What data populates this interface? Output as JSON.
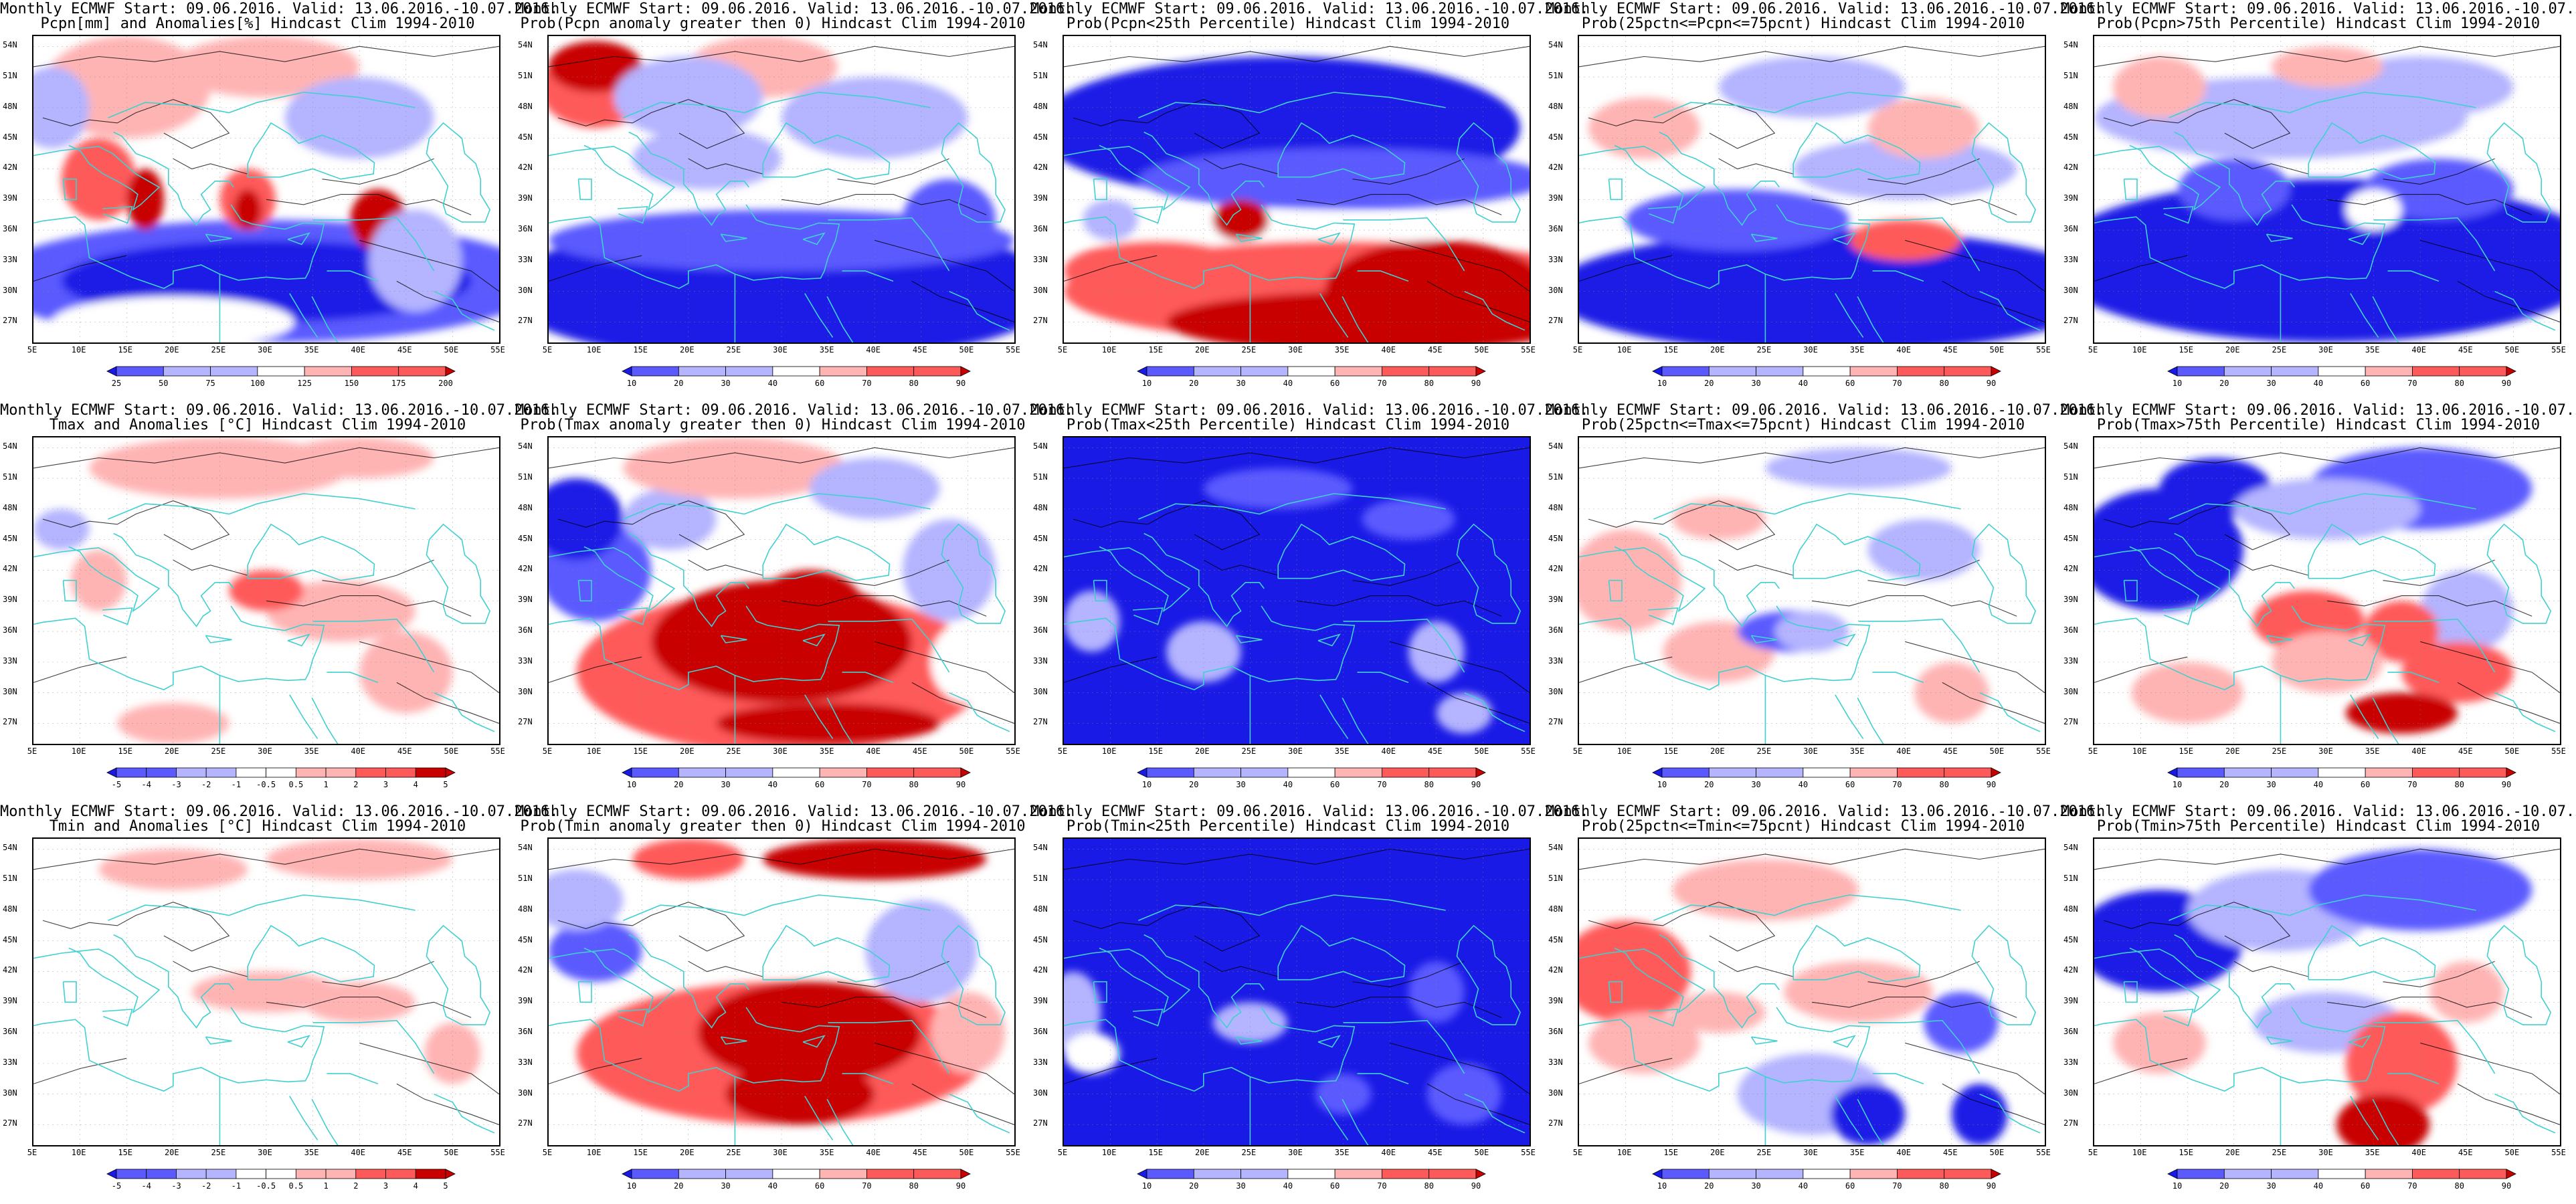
{
  "title_line1": "Monthly ECMWF Start: 09.06.2016. Valid: 13.06.2016.-10.07.2016.",
  "lat_labels": [
    "54N",
    "51N",
    "48N",
    "45N",
    "42N",
    "39N",
    "36N",
    "33N",
    "30N",
    "27N"
  ],
  "lon_labels": [
    "5E",
    "10E",
    "15E",
    "20E",
    "25E",
    "30E",
    "35E",
    "40E",
    "45E",
    "50E",
    "55E"
  ],
  "colors": {
    "blue_dark": "#1a1ae6",
    "blue_mid": "#5a5aff",
    "blue_light": "#b4b4ff",
    "white": "#ffffff",
    "red_light": "#ffb4b4",
    "red_mid": "#ff5a5a",
    "red_dark": "#c80000",
    "coast": "#40d0d0",
    "contour": "#000000"
  },
  "scales": {
    "pcpn_anom": [
      "25",
      "50",
      "75",
      "100",
      "125",
      "150",
      "175",
      "200"
    ],
    "prob": [
      "10",
      "20",
      "30",
      "40",
      "60",
      "70",
      "80",
      "90"
    ],
    "temp_anom": [
      "-5",
      "-4",
      "-3",
      "-2",
      "-1",
      "-0.5",
      "0.5",
      "1",
      "2",
      "3",
      "4",
      "5"
    ]
  },
  "panels": [
    {
      "id": "pcpn-anom",
      "row": 0,
      "col": 0,
      "line2": "Pcpn[mm] and Anomalies[%] Hindcast Clim 1994-2010",
      "scale": "pcpn_anom",
      "field": "pcpn_anom"
    },
    {
      "id": "pcpn-prob-gt0",
      "row": 0,
      "col": 1,
      "line2": "Prob(Pcpn anomaly greater then 0) Hindcast Clim 1994-2010",
      "scale": "prob",
      "field": "pcpn_prob_gt0"
    },
    {
      "id": "pcpn-prob-lt25",
      "row": 0,
      "col": 2,
      "line2": "Prob(Pcpn<25th Percentile) Hindcast Clim 1994-2010",
      "scale": "prob",
      "field": "pcpn_lt25"
    },
    {
      "id": "pcpn-prob-mid",
      "row": 0,
      "col": 3,
      "line2": "Prob(25pctn<=Pcpn<=75pcnt) Hindcast Clim 1994-2010",
      "scale": "prob",
      "field": "pcpn_mid"
    },
    {
      "id": "pcpn-prob-gt75",
      "row": 0,
      "col": 4,
      "line2": "Prob(Pcpn>75th Percentile) Hindcast Clim 1994-2010",
      "scale": "prob",
      "field": "pcpn_gt75"
    },
    {
      "id": "tmax-anom",
      "row": 1,
      "col": 0,
      "line2": "Tmax and Anomalies [°C] Hindcast Clim 1994-2010",
      "scale": "temp_anom",
      "field": "tmax_anom"
    },
    {
      "id": "tmax-prob-gt0",
      "row": 1,
      "col": 1,
      "line2": "Prob(Tmax anomaly greater then 0) Hindcast Clim 1994-2010",
      "scale": "prob",
      "field": "tmax_gt0"
    },
    {
      "id": "tmax-prob-lt25",
      "row": 1,
      "col": 2,
      "line2": "Prob(Tmax<25th Percentile) Hindcast Clim 1994-2010",
      "scale": "prob",
      "field": "tmax_lt25"
    },
    {
      "id": "tmax-prob-mid",
      "row": 1,
      "col": 3,
      "line2": "Prob(25pctn<=Tmax<=75pcnt) Hindcast Clim 1994-2010",
      "scale": "prob",
      "field": "tmax_mid"
    },
    {
      "id": "tmax-prob-gt75",
      "row": 1,
      "col": 4,
      "line2": "Prob(Tmax>75th Percentile) Hindcast Clim 1994-2010",
      "scale": "prob",
      "field": "tmax_gt75"
    },
    {
      "id": "tmin-anom",
      "row": 2,
      "col": 0,
      "line2": "Tmin and Anomalies [°C] Hindcast Clim 1994-2010",
      "scale": "temp_anom",
      "field": "tmin_anom"
    },
    {
      "id": "tmin-prob-gt0",
      "row": 2,
      "col": 1,
      "line2": "Prob(Tmin anomaly greater then 0) Hindcast Clim 1994-2010",
      "scale": "prob",
      "field": "tmin_gt0"
    },
    {
      "id": "tmin-prob-lt25",
      "row": 2,
      "col": 2,
      "line2": "Prob(Tmin<25th Percentile) Hindcast Clim 1994-2010",
      "scale": "prob",
      "field": "tmin_lt25"
    },
    {
      "id": "tmin-prob-mid",
      "row": 2,
      "col": 3,
      "line2": "Prob(25pctn<=Tmin<=75pcnt) Hindcast Clim 1994-2010",
      "scale": "prob",
      "field": "tmin_mid"
    },
    {
      "id": "tmin-prob-gt75",
      "row": 2,
      "col": 4,
      "line2": "Prob(Tmin>75th Percentile) Hindcast Clim 1994-2010",
      "scale": "prob",
      "field": "tmin_gt75"
    }
  ]
}
